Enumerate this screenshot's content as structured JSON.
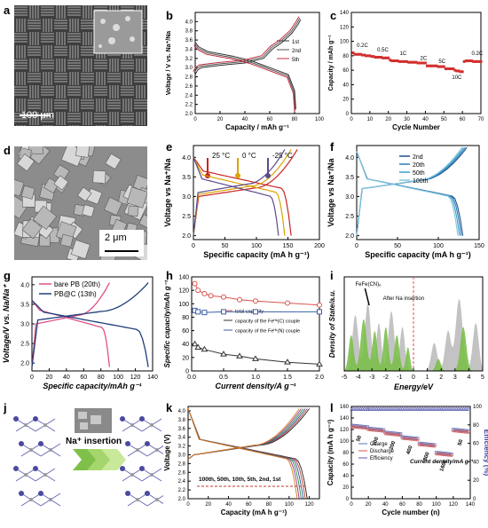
{
  "chart_data": [
    {
      "panel": "a",
      "type": "image",
      "scale_bar": "100 μm"
    },
    {
      "panel": "b",
      "type": "line",
      "xlabel": "Capacity / mAh g⁻¹",
      "ylabel": "Voltage / V vs. Na⁺/Na",
      "xlim": [
        0,
        100
      ],
      "ylim": [
        2.0,
        4.2
      ],
      "xticks": [
        0,
        20,
        40,
        60,
        80,
        100
      ],
      "yticks": [
        2.0,
        2.2,
        2.4,
        2.6,
        2.8,
        3.0,
        3.2,
        3.4,
        3.6,
        3.8,
        4.0
      ],
      "legend": "top-right",
      "series": [
        {
          "name": "1st",
          "color": "#333333"
        },
        {
          "name": "2nd",
          "color": "#555555"
        },
        {
          "name": "5th",
          "color": "#c03040"
        }
      ],
      "charge": [
        [
          0,
          2.85
        ],
        [
          2,
          2.95
        ],
        [
          5,
          3.0
        ],
        [
          20,
          3.05
        ],
        [
          40,
          3.1
        ],
        [
          55,
          3.2
        ],
        [
          62,
          3.4
        ],
        [
          70,
          3.55
        ],
        [
          78,
          3.75
        ],
        [
          83,
          3.95
        ],
        [
          85,
          4.05
        ]
      ],
      "discharge": [
        [
          0,
          3.55
        ],
        [
          3,
          3.45
        ],
        [
          10,
          3.35
        ],
        [
          20,
          3.3
        ],
        [
          30,
          3.25
        ],
        [
          45,
          3.15
        ],
        [
          55,
          3.05
        ],
        [
          65,
          2.95
        ],
        [
          75,
          2.85
        ],
        [
          80,
          2.5
        ],
        [
          81,
          2.1
        ]
      ]
    },
    {
      "panel": "c",
      "type": "scatter",
      "xlabel": "Cycle Number",
      "ylabel": "Capacity / mAh g⁻¹",
      "xlim": [
        0,
        70
      ],
      "ylim": [
        0,
        140
      ],
      "xticks": [
        0,
        10,
        20,
        30,
        40,
        50,
        60,
        70
      ],
      "yticks": [
        0,
        20,
        40,
        60,
        80,
        100,
        120,
        140
      ],
      "color": "#d32f2f",
      "x": [
        1,
        2,
        3,
        4,
        5,
        6,
        7,
        8,
        9,
        10,
        11,
        12,
        13,
        14,
        15,
        16,
        17,
        18,
        19,
        20,
        21,
        22,
        23,
        24,
        25,
        26,
        27,
        28,
        29,
        30,
        31,
        32,
        33,
        34,
        35,
        36,
        37,
        38,
        39,
        40,
        41,
        42,
        43,
        44,
        45,
        46,
        47,
        48,
        49,
        50,
        51,
        52,
        53,
        54,
        55,
        56,
        57,
        58,
        59,
        60,
        61,
        62,
        63,
        64,
        65,
        66,
        67,
        68,
        69,
        70
      ],
      "y": [
        84,
        82,
        82,
        82,
        82,
        81,
        81,
        80,
        80,
        80,
        79,
        79,
        78,
        78,
        78,
        78,
        77,
        77,
        77,
        77,
        74,
        73,
        73,
        73,
        73,
        72,
        72,
        72,
        72,
        72,
        71,
        71,
        71,
        71,
        71,
        70,
        70,
        70,
        70,
        70,
        66,
        66,
        66,
        66,
        66,
        66,
        65,
        65,
        65,
        65,
        62,
        62,
        62,
        62,
        62,
        60,
        59,
        59,
        58,
        58,
        72,
        73,
        73,
        73,
        73,
        72,
        72,
        72,
        72,
        72
      ],
      "annotations": [
        {
          "text": "0.2C",
          "x": 6,
          "y": 92
        },
        {
          "text": "0.5C",
          "x": 17,
          "y": 86
        },
        {
          "text": "1C",
          "x": 28,
          "y": 81
        },
        {
          "text": "2C",
          "x": 39,
          "y": 74
        },
        {
          "text": "5C",
          "x": 49,
          "y": 70
        },
        {
          "text": "10C",
          "x": 57,
          "y": 48
        },
        {
          "text": "0.2C",
          "x": 68,
          "y": 81
        }
      ]
    },
    {
      "panel": "d",
      "type": "image",
      "scale_bar": "2 μm"
    },
    {
      "panel": "e",
      "type": "line",
      "xlabel": "Specific capacity  (mA h g⁻¹)",
      "ylabel": "Voltage vs Na⁺/Na",
      "xlim": [
        0,
        200
      ],
      "ylim": [
        1.9,
        4.3
      ],
      "xticks": [
        0,
        50,
        100,
        150,
        200
      ],
      "yticks": [
        2.0,
        2.5,
        3.0,
        3.5,
        4.0
      ],
      "series": [
        {
          "name": "25 °C",
          "color": "#cc2222",
          "capacity": 165
        },
        {
          "name": "0 °C",
          "color": "#d9a400",
          "capacity": 155
        },
        {
          "name": "-25 °C",
          "color": "#5d4a8a",
          "capacity": 145
        }
      ]
    },
    {
      "panel": "f",
      "type": "line",
      "xlabel": "Specific capacity  (mA h g⁻¹)",
      "ylabel": "Voltage vs Na⁺/Na",
      "xlim": [
        0,
        150
      ],
      "ylim": [
        1.9,
        4.3
      ],
      "xticks": [
        0,
        50,
        100,
        150
      ],
      "yticks": [
        2.0,
        2.5,
        3.0,
        3.5,
        4.0
      ],
      "legend": "top",
      "series": [
        {
          "name": "2nd",
          "color": "#1f4e8c"
        },
        {
          "name": "20th",
          "color": "#2a7db8"
        },
        {
          "name": "50th",
          "color": "#3aa0c8"
        },
        {
          "name": "100th",
          "color": "#87c6df"
        }
      ]
    },
    {
      "panel": "g",
      "type": "line",
      "xlabel": "Specific capacity/mAh g⁻¹",
      "ylabel": "Voltage/V vs. Na/Na⁺",
      "xlim": [
        0,
        140
      ],
      "ylim": [
        1.8,
        4.2
      ],
      "xticks": [
        0,
        20,
        40,
        60,
        80,
        100,
        120,
        140
      ],
      "yticks": [
        2.0,
        2.5,
        3.0,
        3.5,
        4.0
      ],
      "legend": "top-left",
      "series": [
        {
          "name": "bare PB (20th)",
          "color": "#e0508a",
          "capacity": 90
        },
        {
          "name": "PB@C  (13th)",
          "color": "#1f3f7a",
          "capacity": 135
        }
      ]
    },
    {
      "panel": "h",
      "type": "line",
      "xlabel": "Current density/A g⁻¹",
      "ylabel": "Specific capacity/mAh g⁻¹",
      "xlim": [
        0,
        2.0
      ],
      "ylim": [
        0,
        140
      ],
      "xticks": [
        0.0,
        0.5,
        1.0,
        1.5,
        2.0
      ],
      "yticks": [
        0,
        20,
        40,
        60,
        80,
        100,
        120,
        140
      ],
      "legend": "right",
      "series": [
        {
          "name": "total capacity",
          "color": "#d9534f",
          "marker": "circle",
          "x": [
            0.05,
            0.1,
            0.2,
            0.3,
            0.5,
            0.75,
            1.0,
            1.5,
            2.0
          ],
          "values": [
            130,
            120,
            115,
            112,
            110,
            106,
            104,
            101,
            98
          ]
        },
        {
          "name": "capacity of the Feᴴˢ(C) couple",
          "color": "#333333",
          "marker": "triangle",
          "x": [
            0.05,
            0.1,
            0.2,
            0.5,
            0.75,
            1.0,
            1.5,
            2.0
          ],
          "values": [
            40,
            35,
            32,
            25,
            22,
            18,
            13,
            10
          ]
        },
        {
          "name": "capacity of the Feᴴᴸ(N) couple",
          "color": "#3a5fa8",
          "marker": "square",
          "x": [
            0.05,
            0.1,
            0.2,
            0.5,
            1.0,
            2.0
          ],
          "values": [
            90,
            88,
            87,
            88,
            88,
            88
          ]
        }
      ]
    },
    {
      "panel": "i",
      "type": "area",
      "xlabel": "Energy/eV",
      "ylabel": "Density of State/a.u.",
      "xlim": [
        -5,
        5
      ],
      "xticks": [
        -5,
        -4,
        -3,
        -2,
        -1,
        0,
        1,
        2,
        3,
        4,
        5
      ],
      "annotations": [
        "FeFe(CN)₆",
        "After Na insertion"
      ]
    },
    {
      "panel": "j",
      "type": "image",
      "label": "Na⁺ insertion"
    },
    {
      "panel": "k",
      "type": "line",
      "xlabel": "Capacity (mA h g⁻¹)",
      "ylabel": "Voltage (V)",
      "xlim": [
        0,
        130
      ],
      "ylim": [
        2.0,
        4.1
      ],
      "xticks": [
        0,
        20,
        40,
        60,
        80,
        100,
        120
      ],
      "yticks": [
        2.0,
        2.2,
        2.4,
        2.6,
        2.8,
        3.0,
        3.2,
        3.4,
        3.6,
        3.8,
        4.0
      ],
      "annotation": "100th, 50th, 10th, 5th, 2nd, 1st",
      "series": [
        {
          "name": "1st",
          "color": "#222222",
          "capacity": 120
        },
        {
          "name": "2nd",
          "color": "#c0392b",
          "capacity": 118
        },
        {
          "name": "5th",
          "color": "#2e4fa0",
          "capacity": 116
        },
        {
          "name": "10th",
          "color": "#2c8c3c",
          "capacity": 114
        },
        {
          "name": "50th",
          "color": "#8e3a8c",
          "capacity": 112
        },
        {
          "name": "100th",
          "color": "#d67a1e",
          "capacity": 110
        }
      ]
    },
    {
      "panel": "l",
      "type": "scatter",
      "xlabel": "Cycle number (n)",
      "ylabel": "Capacity (mA h g⁻¹)",
      "y2label": "Efficiency (%)",
      "xlim": [
        0,
        140
      ],
      "ylim": [
        0,
        160
      ],
      "y2lim": [
        0,
        100
      ],
      "xticks": [
        0,
        20,
        40,
        60,
        80,
        100,
        120,
        140
      ],
      "yticks": [
        0,
        20,
        40,
        60,
        80,
        100,
        120,
        140,
        160
      ],
      "y2ticks": [
        0,
        20,
        40,
        60,
        80,
        100
      ],
      "current_label": "Current density/mA g⁻¹",
      "rate_labels": [
        "50",
        "100",
        "200",
        "400",
        "800",
        "1600",
        "50"
      ],
      "legend": [
        "Charge",
        "Discharge",
        "Efficiency"
      ],
      "charge_color": "#5b6fb8",
      "discharge_color": "#d9534f",
      "efficiency_color": "#5a5ab0",
      "segments": [
        {
          "x": [
            1,
            20
          ],
          "value": 125
        },
        {
          "x": [
            20,
            40
          ],
          "value": 120
        },
        {
          "x": [
            40,
            60
          ],
          "value": 113
        },
        {
          "x": [
            60,
            80
          ],
          "value": 105
        },
        {
          "x": [
            80,
            100
          ],
          "value": 94
        },
        {
          "x": [
            100,
            120
          ],
          "value": 78
        },
        {
          "x": [
            120,
            140
          ],
          "value": 118
        }
      ]
    }
  ]
}
